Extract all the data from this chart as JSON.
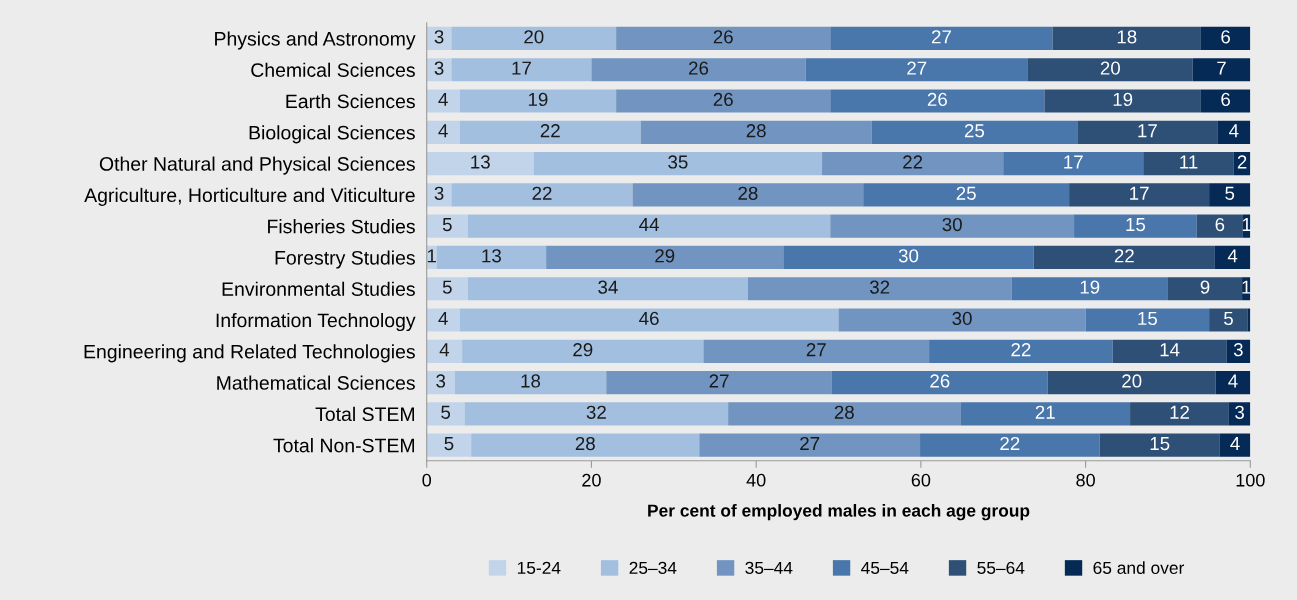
{
  "chart_data": {
    "type": "bar",
    "orientation": "horizontal",
    "stacked": true,
    "xlabel": "Per cent of employed males in each age group",
    "categories": [
      "Physics and Astronomy",
      "Chemical Sciences",
      "Earth Sciences",
      "Biological Sciences",
      "Other Natural and Physical Sciences",
      "Agriculture, Horticulture and Viticulture",
      "Fisheries Studies",
      "Forestry Studies",
      "Environmental Studies",
      "Information Technology",
      "Engineering and Related Technologies",
      "Mathematical Sciences",
      "Total STEM",
      "Total Non-STEM"
    ],
    "series": [
      {
        "name": "15-24",
        "color": "#c2d4e9",
        "values": [
          3,
          3,
          4,
          4,
          13,
          3,
          5.0,
          1.2,
          5,
          4,
          4.3,
          3.4,
          4.6,
          5.4
        ],
        "value_labels": [
          "3",
          "3",
          "4",
          "4",
          "13",
          "3",
          "5",
          "1",
          "5",
          "4",
          "4",
          "3",
          "5",
          "5"
        ]
      },
      {
        "name": "25–34",
        "color": "#a3bfdf",
        "values": [
          20,
          17,
          19,
          22,
          35,
          22,
          44.0,
          13.3,
          34,
          46,
          29.3,
          18.4,
          32.0,
          27.7
        ],
        "value_labels": [
          "20",
          "17",
          "19",
          "22",
          "35",
          "22",
          "44",
          "13",
          "34",
          "46",
          "29",
          "18",
          "32",
          "28"
        ]
      },
      {
        "name": "35–44",
        "color": "#7195c0",
        "values": [
          26,
          26,
          26,
          28,
          22,
          28,
          29.6,
          28.8,
          32,
          30,
          27.4,
          27.4,
          28.2,
          26.8
        ],
        "value_labels": [
          "26",
          "26",
          "26",
          "28",
          "22",
          "28",
          "30",
          "29",
          "32",
          "30",
          "27",
          "27",
          "28",
          "27"
        ]
      },
      {
        "name": "45–54",
        "color": "#4a77ab",
        "values": [
          27,
          27,
          26,
          25,
          17,
          25,
          14.9,
          30.4,
          19,
          15,
          22.3,
          26.2,
          20.6,
          21.8
        ],
        "value_labels": [
          "27",
          "27",
          "26",
          "25",
          "17",
          "25",
          "15",
          "30",
          "19",
          "15",
          "22",
          "26",
          "21",
          "22"
        ]
      },
      {
        "name": "55–64",
        "color": "#2e5076",
        "values": [
          18,
          20,
          19,
          17,
          11,
          17,
          5.6,
          22.0,
          9,
          4.7,
          13.8,
          20.4,
          12.0,
          14.6
        ],
        "value_labels": [
          "18",
          "20",
          "19",
          "17",
          "11",
          "17",
          "6",
          "22",
          "9",
          "5",
          "14",
          "20",
          "12",
          "15"
        ]
      },
      {
        "name": "65 and over",
        "color": "#052a55",
        "values": [
          6,
          7,
          6,
          4,
          2,
          5,
          0.9,
          4.3,
          1,
          0.3,
          2.9,
          4.2,
          2.6,
          3.7
        ],
        "value_labels": [
          "6",
          "7",
          "6",
          "4",
          "2",
          "5",
          "1",
          "4",
          "1",
          null,
          "3",
          "4",
          "3",
          "4"
        ]
      }
    ],
    "xlim": [
      0,
      100
    ],
    "xticks": [
      0,
      20,
      40,
      60,
      80,
      100
    ],
    "legend": "bottom"
  }
}
